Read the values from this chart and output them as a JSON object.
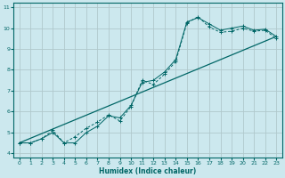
{
  "xlabel": "Humidex (Indice chaleur)",
  "xlim": [
    -0.5,
    23.5
  ],
  "ylim": [
    3.8,
    11.2
  ],
  "xticks": [
    0,
    1,
    2,
    3,
    4,
    5,
    6,
    7,
    8,
    9,
    10,
    11,
    12,
    13,
    14,
    15,
    16,
    17,
    18,
    19,
    20,
    21,
    22,
    23
  ],
  "yticks": [
    4,
    5,
    6,
    7,
    8,
    9,
    10,
    11
  ],
  "bg_color": "#cce8ee",
  "line_color": "#006666",
  "grid_color": "#b0c8cc",
  "line1_x": [
    0,
    1,
    2,
    3,
    4,
    5,
    6,
    7,
    8,
    9,
    10,
    11,
    12,
    13,
    14,
    15,
    16,
    17,
    18,
    19,
    20,
    21,
    22,
    23
  ],
  "line1_y": [
    4.5,
    4.5,
    4.7,
    5.0,
    4.5,
    4.5,
    5.0,
    5.3,
    5.8,
    5.7,
    6.3,
    7.4,
    7.5,
    7.9,
    8.5,
    10.3,
    10.5,
    10.2,
    9.9,
    10.0,
    10.1,
    9.9,
    9.95,
    9.6
  ],
  "line2_x": [
    0,
    1,
    2,
    3,
    4,
    5,
    6,
    7,
    8,
    9,
    10,
    11,
    12,
    13,
    14,
    15,
    16,
    17,
    18,
    19,
    20,
    21,
    22,
    23
  ],
  "line2_y": [
    4.5,
    4.5,
    4.7,
    5.1,
    4.5,
    4.8,
    5.2,
    5.5,
    5.85,
    5.55,
    6.25,
    7.5,
    7.3,
    7.8,
    8.4,
    10.25,
    10.55,
    10.05,
    9.8,
    9.85,
    10.0,
    9.85,
    9.9,
    9.5
  ],
  "line3_x": [
    0,
    23
  ],
  "line3_y": [
    4.5,
    9.6
  ]
}
